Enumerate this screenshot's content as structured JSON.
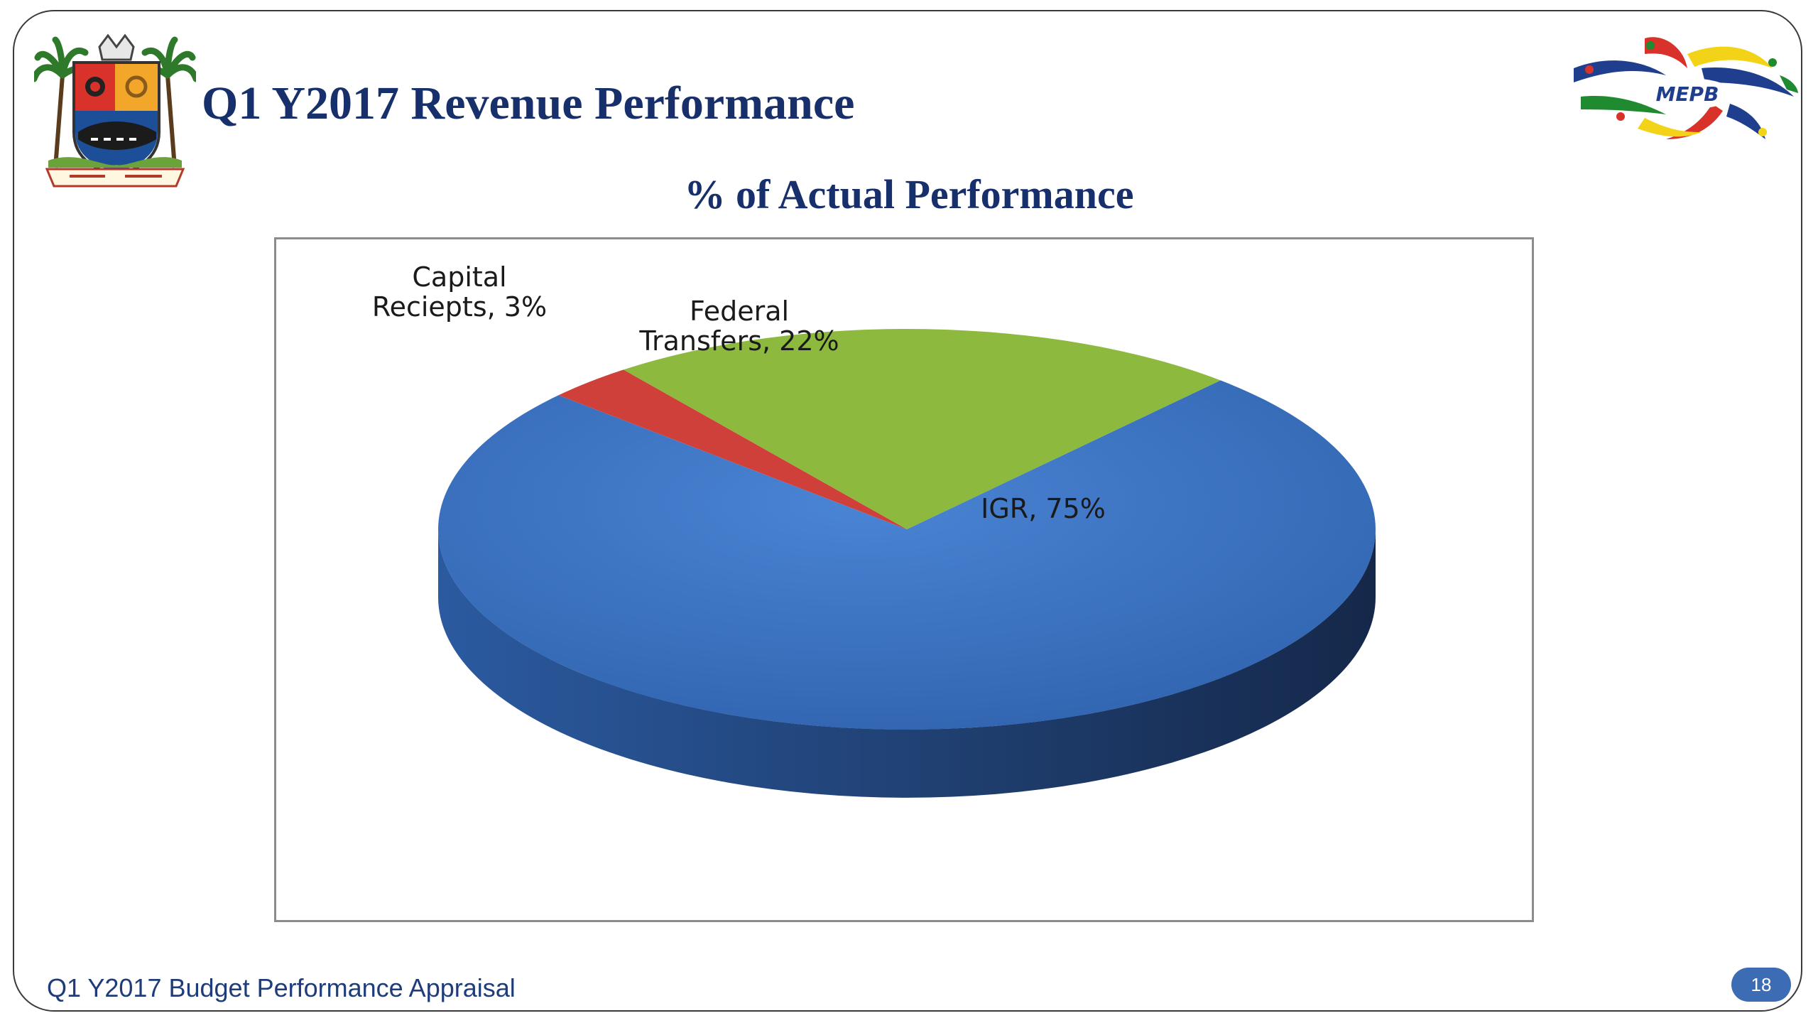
{
  "slide": {
    "title": "Q1 Y2017 Revenue Performance",
    "footer": "Q1 Y2017 Budget Performance Appraisal",
    "page_number": "18"
  },
  "logos": {
    "left": "lagos-state-crest",
    "right": {
      "name": "mepb-logo",
      "text": "MEPB"
    }
  },
  "chart_data": {
    "type": "pie",
    "title": "% of Actual Performance",
    "style": "3d",
    "slices": [
      {
        "name": "IGR",
        "value": 75,
        "color": "#3b73c4",
        "label_lines": [
          "IGR, 75%"
        ]
      },
      {
        "name": "Capital Reciepts",
        "value": 3,
        "color": "#d0403a",
        "label_lines": [
          "Capital",
          "Reciepts, 3%"
        ]
      },
      {
        "name": "Federal Transfers",
        "value": 22,
        "color": "#8db93f",
        "label_lines": [
          "Federal",
          "Transfers, 22%"
        ]
      }
    ]
  }
}
